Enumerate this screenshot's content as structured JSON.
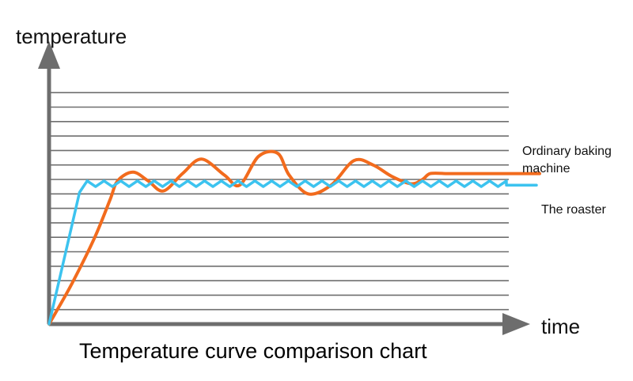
{
  "chart_data": {
    "type": "line",
    "title": "Temperature curve comparison chart",
    "xlabel": "time",
    "ylabel": "temperature",
    "grid": true,
    "legend": "right",
    "series": [
      {
        "name": "Ordinary baking machine",
        "color": "#f26b1d",
        "x": [
          0,
          6,
          12,
          16,
          18,
          22,
          26,
          30,
          35,
          40,
          46,
          50,
          55,
          60,
          63,
          68,
          74,
          80,
          85,
          90,
          95,
          98,
          100,
          104,
          110,
          120
        ],
        "y": [
          0,
          2.8,
          6,
          8.6,
          9.9,
          10.5,
          9.9,
          9.2,
          10.4,
          11.4,
          10.3,
          9.6,
          11.6,
          11.8,
          10.3,
          9.0,
          9.6,
          11.3,
          11.0,
          10.2,
          9.7,
          10.0,
          10.4,
          10.4,
          10.4,
          10.4
        ]
      },
      {
        "name": "The roaster",
        "color": "#3cc3ef",
        "x": [
          0,
          8,
          10,
          14,
          16,
          18,
          120
        ],
        "y": [
          0,
          9.1,
          9.9,
          9.5,
          9.7,
          9.9,
          9.6
        ]
      }
    ]
  }
}
